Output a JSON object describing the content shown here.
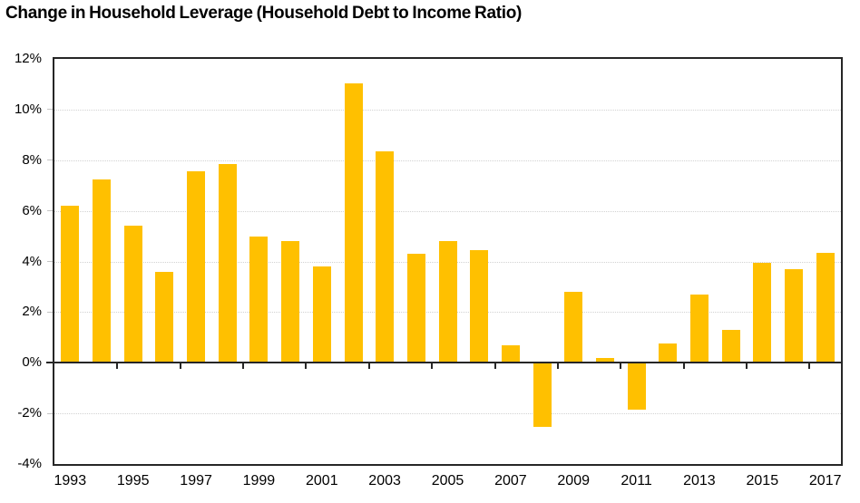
{
  "title": "Change in Household Leverage (Household Debt to Income Ratio)",
  "chart_data": {
    "type": "bar",
    "title": "Change in Household Leverage (Household Debt to Income Ratio)",
    "categories": [
      "1993",
      "1994",
      "1995",
      "1996",
      "1997",
      "1998",
      "1999",
      "2000",
      "2001",
      "2002",
      "2003",
      "2004",
      "2005",
      "2006",
      "2007",
      "2008",
      "2009",
      "2010",
      "2011",
      "2012",
      "2013",
      "2014",
      "2015",
      "2016",
      "2017"
    ],
    "values": [
      6.2,
      7.25,
      5.4,
      3.6,
      7.55,
      7.85,
      5.0,
      4.8,
      3.8,
      11.05,
      8.35,
      4.3,
      4.8,
      4.45,
      0.7,
      -2.55,
      2.8,
      0.2,
      -1.85,
      0.75,
      2.7,
      1.3,
      3.95,
      3.7,
      4.35
    ],
    "xlabel": "",
    "ylabel": "",
    "ylim": [
      -4,
      12
    ],
    "y_ticks": [
      {
        "value": 12,
        "label": "12%"
      },
      {
        "value": 10,
        "label": "10%"
      },
      {
        "value": 8,
        "label": "8%"
      },
      {
        "value": 6,
        "label": "6%"
      },
      {
        "value": 4,
        "label": "4%"
      },
      {
        "value": 2,
        "label": "2%"
      },
      {
        "value": 0,
        "label": "0%"
      },
      {
        "value": -2,
        "label": "-2%"
      },
      {
        "value": -4,
        "label": "-4%"
      }
    ],
    "x_ticks": [
      {
        "index": 0,
        "label": "1993"
      },
      {
        "index": 2,
        "label": "1995"
      },
      {
        "index": 4,
        "label": "1997"
      },
      {
        "index": 6,
        "label": "1999"
      },
      {
        "index": 8,
        "label": "2001"
      },
      {
        "index": 10,
        "label": "2003"
      },
      {
        "index": 12,
        "label": "2005"
      },
      {
        "index": 14,
        "label": "2007"
      },
      {
        "index": 16,
        "label": "2009"
      },
      {
        "index": 18,
        "label": "2011"
      },
      {
        "index": 20,
        "label": "2013"
      },
      {
        "index": 22,
        "label": "2015"
      },
      {
        "index": 24,
        "label": "2017"
      }
    ],
    "grid": true,
    "legend": "none",
    "colors": {
      "bar": "#FFC000",
      "gridline": "#D2D2D2",
      "axis": "#262626",
      "text": "#000000",
      "background": "#FFFFFF"
    }
  }
}
